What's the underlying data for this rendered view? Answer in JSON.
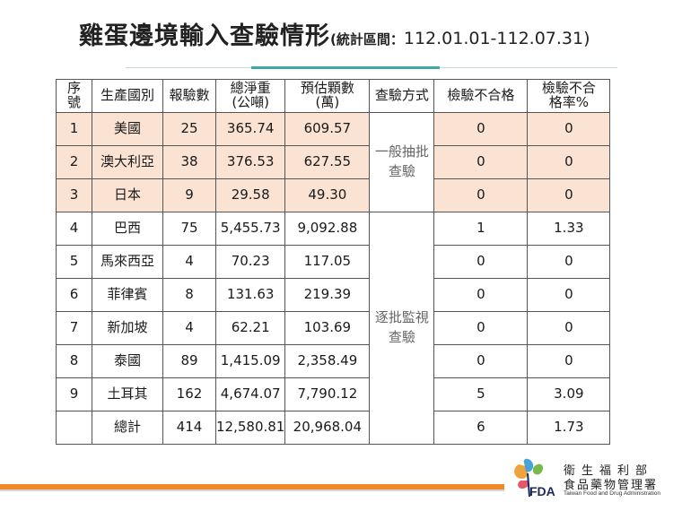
{
  "title": {
    "main": "雞蛋邊境輸入查驗情形",
    "sub_open": "(統計區間：",
    "sub_range": "112.01.01-112.07.31",
    "sub_close": ")"
  },
  "table": {
    "headers": [
      "序\n號",
      "生產國別",
      "報驗數",
      "總淨重\n(公噸)",
      "預估顆數\n(萬)",
      "查驗方式",
      "檢驗不合格",
      "檢驗不合\n格率%"
    ],
    "rows": [
      {
        "no": "1",
        "country": "美國",
        "reports": "25",
        "weight": "365.74",
        "count": "609.57",
        "fail": "0",
        "rate": "0"
      },
      {
        "no": "2",
        "country": "澳大利亞",
        "reports": "38",
        "weight": "376.53",
        "count": "627.55",
        "fail": "0",
        "rate": "0"
      },
      {
        "no": "3",
        "country": "日本",
        "reports": "9",
        "weight": "29.58",
        "count": "49.30",
        "fail": "0",
        "rate": "0"
      },
      {
        "no": "4",
        "country": "巴西",
        "reports": "75",
        "weight": "5,455.73",
        "count": "9,092.88",
        "fail": "1",
        "rate": "1.33"
      },
      {
        "no": "5",
        "country": "馬來西亞",
        "reports": "4",
        "weight": "70.23",
        "count": "117.05",
        "fail": "0",
        "rate": "0"
      },
      {
        "no": "6",
        "country": "菲律賓",
        "reports": "8",
        "weight": "131.63",
        "count": "219.39",
        "fail": "0",
        "rate": "0"
      },
      {
        "no": "7",
        "country": "新加坡",
        "reports": "4",
        "weight": "62.21",
        "count": "103.69",
        "fail": "0",
        "rate": "0"
      },
      {
        "no": "8",
        "country": "泰國",
        "reports": "89",
        "weight": "1,415.09",
        "count": "2,358.49",
        "fail": "0",
        "rate": "0"
      },
      {
        "no": "9",
        "country": "土耳其",
        "reports": "162",
        "weight": "4,674.07",
        "count": "7,790.12",
        "fail": "5",
        "rate": "3.09"
      }
    ],
    "total": {
      "no": "",
      "country": "總計",
      "reports": "414",
      "weight": "12,580.81",
      "count": "20,968.04",
      "fail": "6",
      "rate": "1.73"
    },
    "method_general": [
      "一般抽批",
      "查驗"
    ],
    "method_monitor": [
      "逐批監視",
      "查驗"
    ]
  },
  "logo": {
    "org_line1": "衛生福利部",
    "org_line2": "食品藥物管理署",
    "org_en": "Taiwan Food and Drug Administration",
    "mark": "FDA"
  },
  "colors": {
    "highlight_row": "#fbe3d4",
    "accent_line": "#3fa9a3",
    "footer_bar": "#ef8a2a"
  }
}
